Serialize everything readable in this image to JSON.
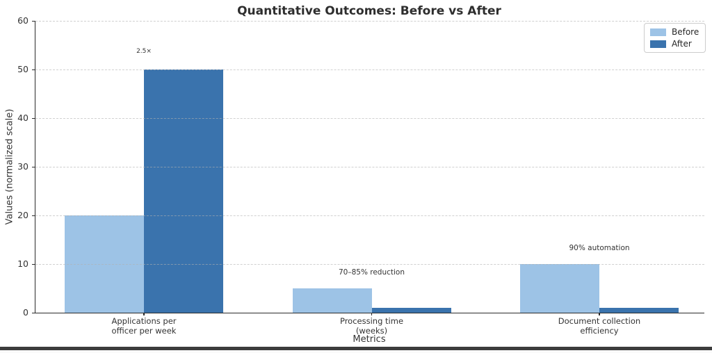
{
  "chart_data": {
    "type": "bar",
    "title": "Quantitative Outcomes: Before vs After",
    "xlabel": "Metrics",
    "ylabel": "Values (normalized scale)",
    "categories": [
      [
        "Applications per",
        "officer per week"
      ],
      [
        "Processing time",
        "(weeks)"
      ],
      [
        "Document collection",
        "efficiency"
      ]
    ],
    "series": [
      {
        "name": "Before",
        "color": "#9DC3E6",
        "values": [
          20,
          5,
          10
        ]
      },
      {
        "name": "After",
        "color": "#3A73AD",
        "values": [
          50,
          1,
          1
        ]
      }
    ],
    "annotations": [
      {
        "text": "2.5×",
        "group": 0,
        "y": 53,
        "size": "small"
      },
      {
        "text": "70–85% reduction",
        "group": 1,
        "y": 7.5,
        "size": "normal"
      },
      {
        "text": "90% automation",
        "group": 2,
        "y": 12.5,
        "size": "normal"
      }
    ],
    "ylim": [
      0,
      60
    ],
    "yticks": [
      0,
      10,
      20,
      30,
      40,
      50,
      60
    ],
    "grid": true,
    "legend_position": "upper right"
  }
}
